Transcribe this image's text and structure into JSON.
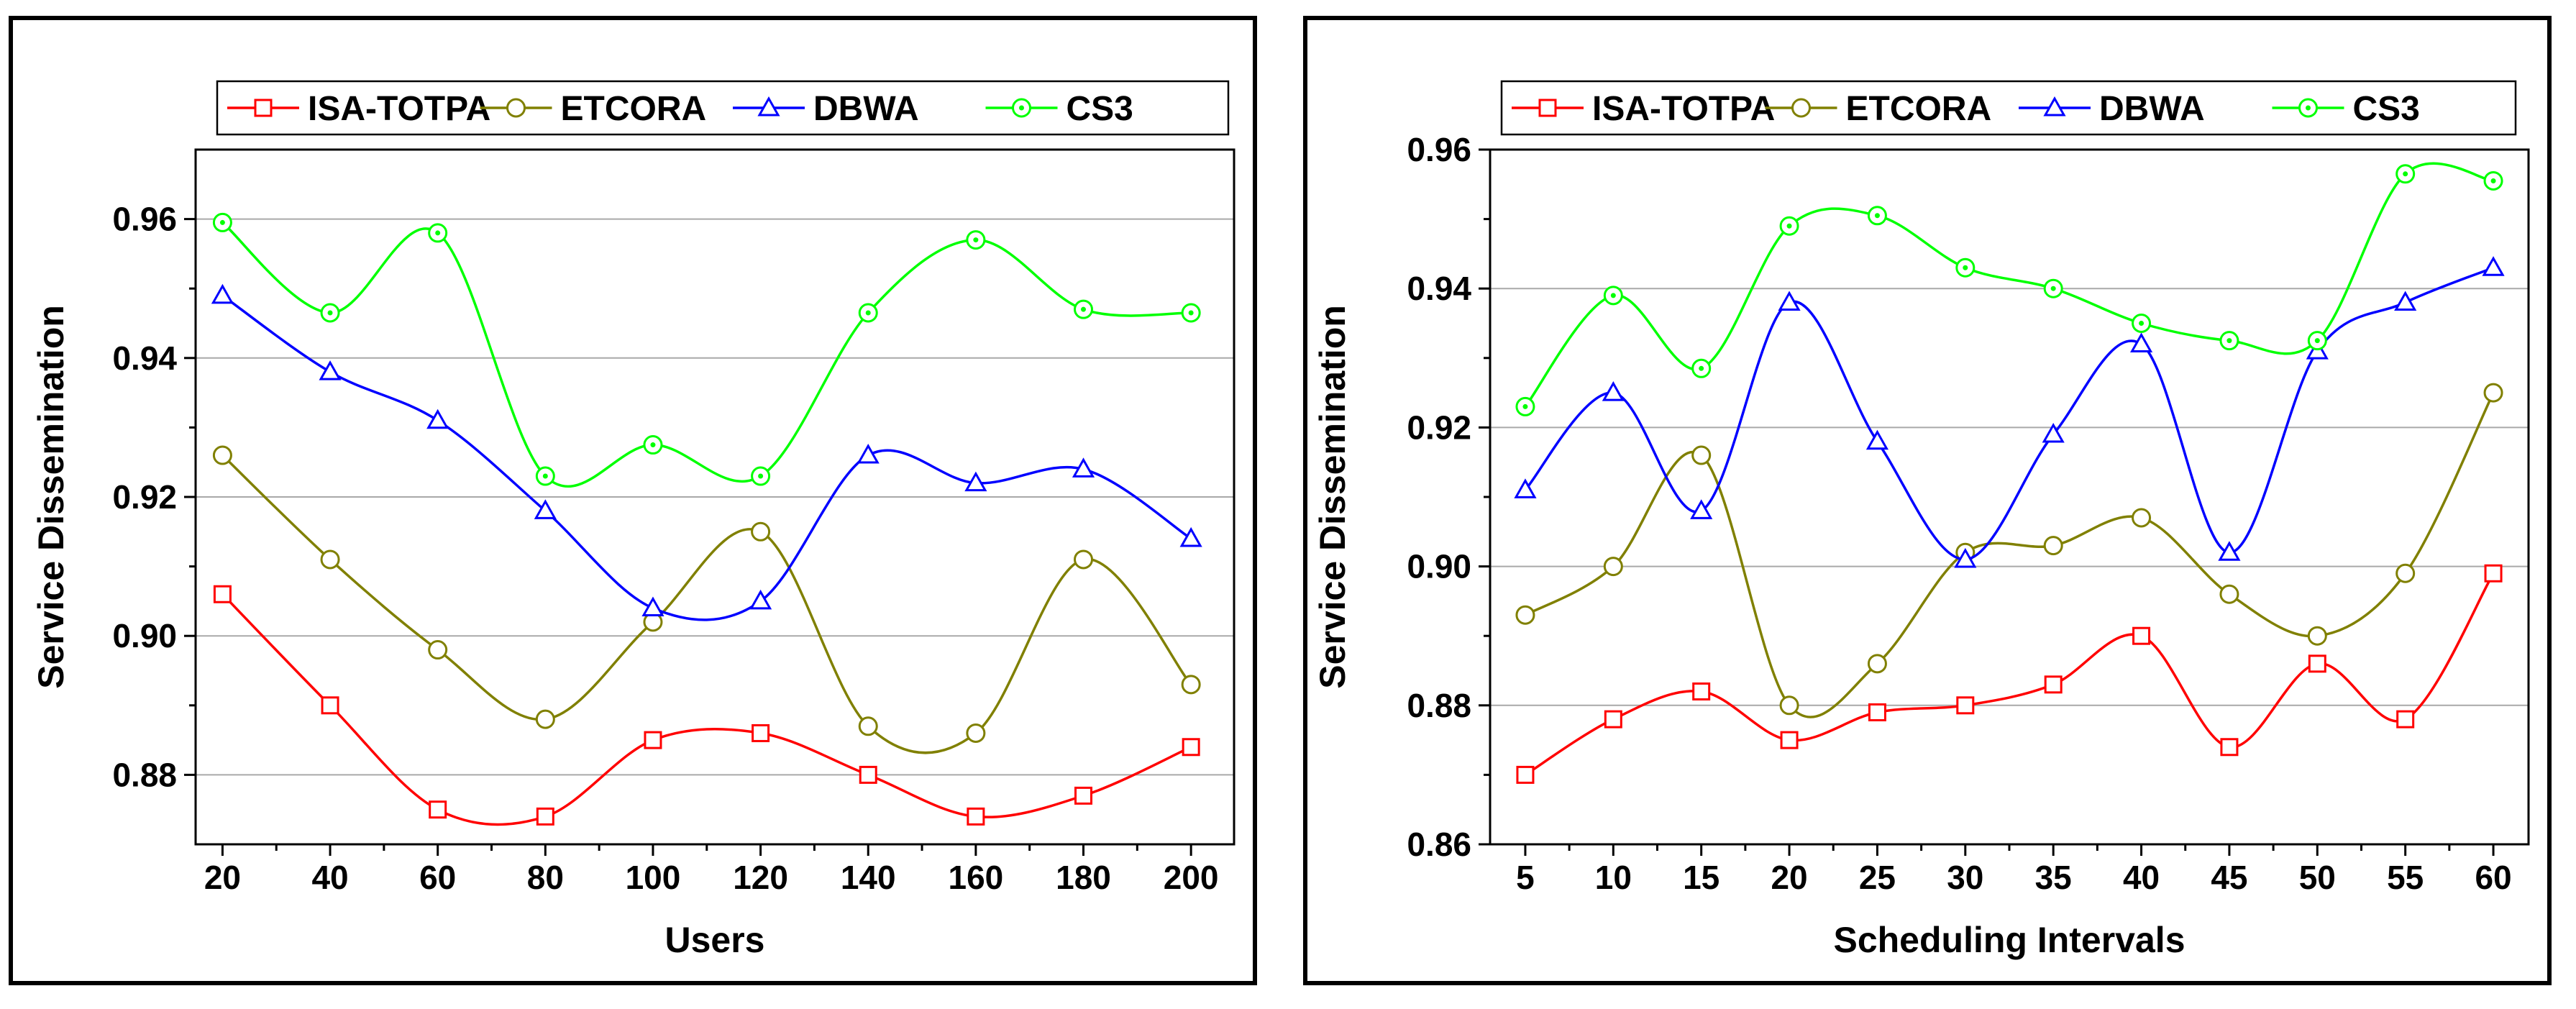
{
  "chart_data": [
    {
      "type": "line",
      "xlabel": "Users",
      "ylabel": "Service  Dissemination",
      "x": [
        20,
        40,
        60,
        80,
        100,
        120,
        140,
        160,
        180,
        200
      ],
      "xticks": [
        "20",
        "40",
        "60",
        "80",
        "100",
        "120",
        "140",
        "160",
        "180",
        "200"
      ],
      "xlim": [
        15,
        208
      ],
      "ylim": [
        0.87,
        0.97
      ],
      "yticks": [
        "0.88",
        "0.90",
        "0.92",
        "0.94",
        "0.96"
      ],
      "ytick_values": [
        0.88,
        0.9,
        0.92,
        0.94,
        0.96
      ],
      "grid": true,
      "legend_position": "top",
      "series": [
        {
          "name": "ISA-TOTPA",
          "color": "#ff0000",
          "marker": "square",
          "values": [
            0.906,
            0.89,
            0.875,
            0.874,
            0.885,
            0.886,
            0.88,
            0.874,
            0.877,
            0.884
          ]
        },
        {
          "name": "ETCORA",
          "color": "#808000",
          "marker": "circle",
          "values": [
            0.926,
            0.911,
            0.898,
            0.888,
            0.902,
            0.915,
            0.887,
            0.886,
            0.911,
            0.893
          ]
        },
        {
          "name": "DBWA",
          "color": "#0000ff",
          "marker": "triangle",
          "values": [
            0.949,
            0.938,
            0.931,
            0.918,
            0.904,
            0.905,
            0.926,
            0.922,
            0.924,
            0.914
          ]
        },
        {
          "name": "CS3",
          "color": "#00ff00",
          "marker": "circle-dot",
          "values": [
            0.9595,
            0.9465,
            0.958,
            0.923,
            0.9275,
            0.923,
            0.9465,
            0.957,
            0.947,
            0.9465
          ]
        }
      ]
    },
    {
      "type": "line",
      "xlabel": "Scheduling Intervals",
      "ylabel": "Service Dissemination",
      "x": [
        5,
        10,
        15,
        20,
        25,
        30,
        35,
        40,
        45,
        50,
        55,
        60
      ],
      "xticks": [
        "5",
        "10",
        "15",
        "20",
        "25",
        "30",
        "35",
        "40",
        "45",
        "50",
        "55",
        "60"
      ],
      "xlim": [
        3,
        62
      ],
      "ylim": [
        0.86,
        0.96
      ],
      "yticks": [
        "0.86",
        "0.88",
        "0.90",
        "0.92",
        "0.94",
        "0.96"
      ],
      "ytick_values": [
        0.86,
        0.88,
        0.9,
        0.92,
        0.94,
        0.96
      ],
      "grid": true,
      "legend_position": "top",
      "series": [
        {
          "name": "ISA-TOTPA",
          "color": "#ff0000",
          "marker": "square",
          "values": [
            0.87,
            0.878,
            0.882,
            0.875,
            0.879,
            0.88,
            0.883,
            0.89,
            0.874,
            0.886,
            0.878,
            0.899
          ]
        },
        {
          "name": "ETCORA",
          "color": "#808000",
          "marker": "circle",
          "values": [
            0.893,
            0.9,
            0.916,
            0.88,
            0.886,
            0.902,
            0.903,
            0.907,
            0.896,
            0.89,
            0.899,
            0.925
          ]
        },
        {
          "name": "DBWA",
          "color": "#0000ff",
          "marker": "triangle",
          "values": [
            0.911,
            0.925,
            0.908,
            0.938,
            0.918,
            0.901,
            0.919,
            0.932,
            0.902,
            0.931,
            0.938,
            0.943
          ]
        },
        {
          "name": "CS3",
          "color": "#00ff00",
          "marker": "circle-dot",
          "values": [
            0.923,
            0.939,
            0.9285,
            0.949,
            0.9505,
            0.943,
            0.94,
            0.935,
            0.9325,
            0.9325,
            0.9565,
            0.9555
          ]
        }
      ]
    }
  ]
}
